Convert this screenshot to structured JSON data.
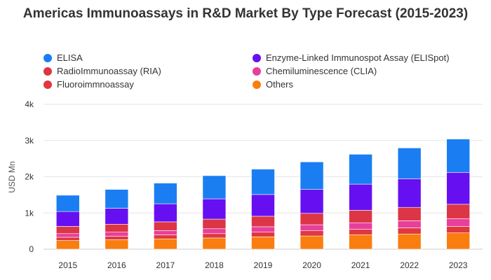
{
  "chart_data": {
    "type": "bar",
    "stacked": true,
    "title": "Americas Immunoassays in R&D Market By Type Forecast (2015-2023)",
    "ylabel": "USD Mn",
    "xlabel": "",
    "ylim": [
      0,
      4000
    ],
    "yticks": [
      {
        "value": 0,
        "label": "0"
      },
      {
        "value": 1000,
        "label": "1k"
      },
      {
        "value": 2000,
        "label": "2k"
      },
      {
        "value": 3000,
        "label": "3k"
      },
      {
        "value": 4000,
        "label": "4k"
      }
    ],
    "grid": true,
    "legend_position": "top",
    "categories": [
      "2015",
      "2016",
      "2017",
      "2018",
      "2019",
      "2020",
      "2021",
      "2022",
      "2023"
    ],
    "series": [
      {
        "name": "Others",
        "color": "#fa7d0f",
        "values": [
          240,
          260,
          285,
          310,
          340,
          365,
          395,
          420,
          450
        ]
      },
      {
        "name": "Fluoroimmnoassay",
        "color": "#e0383e",
        "values": [
          90,
          100,
          110,
          120,
          130,
          145,
          155,
          170,
          180
        ]
      },
      {
        "name": "Chemiluminescence (CLIA)",
        "color": "#e83e9c",
        "values": [
          100,
          110,
          120,
          135,
          150,
          165,
          180,
          195,
          210
        ]
      },
      {
        "name": "RadioImmunoassay (RIA)",
        "color": "#dc3545",
        "values": [
          200,
          220,
          240,
          265,
          290,
          315,
          345,
          370,
          400
        ]
      },
      {
        "name": "Enzyme-Linked Immunospot Assay (ELISpot)",
        "color": "#6610f2",
        "values": [
          410,
          440,
          500,
          560,
          600,
          660,
          720,
          790,
          880
        ]
      },
      {
        "name": "ELISA",
        "color": "#1a7ef2",
        "values": [
          450,
          520,
          570,
          640,
          700,
          760,
          825,
          850,
          920
        ]
      }
    ]
  },
  "legend": [
    {
      "name": "ELISA",
      "color": "#1a7ef2"
    },
    {
      "name": "Enzyme-Linked Immunospot Assay (ELISpot)",
      "color": "#6610f2"
    },
    {
      "name": "RadioImmunoassay (RIA)",
      "color": "#dc3545"
    },
    {
      "name": "Chemiluminescence (CLIA)",
      "color": "#e83e9c"
    },
    {
      "name": "Fluoroimmnoassay",
      "color": "#e0383e"
    },
    {
      "name": "Others",
      "color": "#fa7d0f"
    }
  ]
}
